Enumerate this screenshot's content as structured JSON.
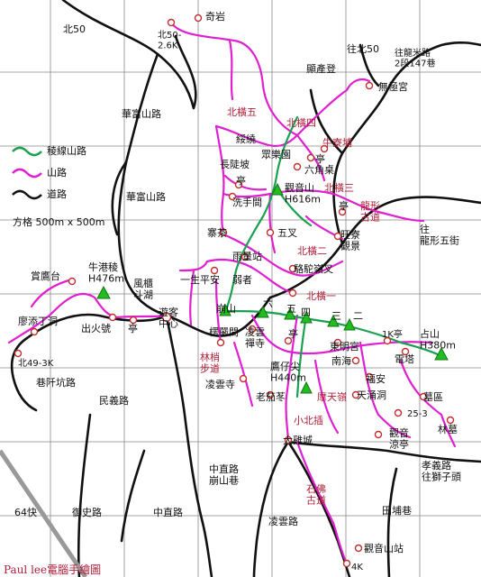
{
  "legend": {
    "ridge_trail": "稜線山路",
    "mountain_trail": "山路",
    "road": "道路",
    "grid": "方格 500m x 500m"
  },
  "colors": {
    "ridge": "#1aa050",
    "trail": "#e020d0",
    "road": "#111111",
    "grid": "#777777",
    "red_label": "#b0203a",
    "peak": "#22bb22",
    "poi": "#c03030"
  },
  "labels": {
    "north50": "北50",
    "qiyan": "奇岩",
    "north50_26k": "北50-\n2.6K",
    "to_north50": "往北50",
    "to_longmi": "往龍米路\n2段147巷",
    "gongcui": "顯產登",
    "wuji": "無極宮",
    "huafu1": "華富山路",
    "beiheng5": "北橫五",
    "beiheng4": "北橫四",
    "niuliao": "牛寮埔",
    "chaoji": "綏繞",
    "zhonglezhuang": "眾樂園",
    "ting1": "亭",
    "changlupo": "長陡坡",
    "liujiaozhuo": "六角桌",
    "ting2": "亭",
    "huafu2": "華富山路",
    "guanyin": "觀音山\nH616m",
    "beiheng3": "北橫三",
    "xishoujian": "洗手間",
    "ting3": "亭",
    "longxing": "龍形\n古道",
    "to_longxing": "往\n龍形五街",
    "wucha": "五叉",
    "wangliao": "旺寮\n觀景",
    "zhaicha": "寨茶",
    "beiheng2": "北橫二",
    "yuliangzhan": "雨量站",
    "luotuoling": "駱駝嶺叉",
    "shangying": "賞鷹台",
    "niugangleng": "牛港稜\nH476m",
    "fengguo": "風櫃\n斗湖",
    "yishengpingan": "一生平安",
    "ruoluo": "弱者",
    "beiheng1": "北橫一",
    "liao_tianding": "廖添丁洞",
    "chuhuohao": "出火號",
    "ting4": "亭",
    "youke": "遊客\n中心",
    "bengshan": "崩山",
    "liu": "六",
    "wu": "五",
    "si": "四",
    "san": "三",
    "er": "二",
    "one_k_ting": "1K亭",
    "zhanshan": "占山\nH380m",
    "laoyanjian": "楞嚴間",
    "lingyun": "凌雲\n禪寺",
    "ting5": "亭",
    "dongmingong": "東明宮",
    "dianta": "電塔",
    "bei49": "北49-3K",
    "linshao": "林梢\n步道",
    "nanhai": "南海",
    "yingzaiwei": "鷹仔尖\nH440m",
    "fuan": "福安",
    "tianchong": "天涌洞",
    "muqu": "墓區",
    "xiangganlu": "巷阡坑路",
    "minyilu": "民義路",
    "lingyunsi": "凌雲寺",
    "laoqie": "老茄苳",
    "motianling": "摩天嶺",
    "xiaobei": "小北插",
    "253": "25-3",
    "linmu": "林墓",
    "dajicheng": "大雞城",
    "guanyin_liangting": "觀音\n涼亭",
    "zhongzheng1": "中直路\n崩山巷",
    "xiaoyilu": "孝義路\n往獅子頭",
    "shifo": "石佛\n古道",
    "64kuai": "64快",
    "yushilu": "御史路",
    "zhongzheng2": "中直路",
    "tiandixiang": "田埔巷",
    "lingyunlu": "凌雲路",
    "guanyinshanzhan": "觀音山站",
    "4k": "4K",
    "credit": "Paul lee電腦手繪圖"
  }
}
